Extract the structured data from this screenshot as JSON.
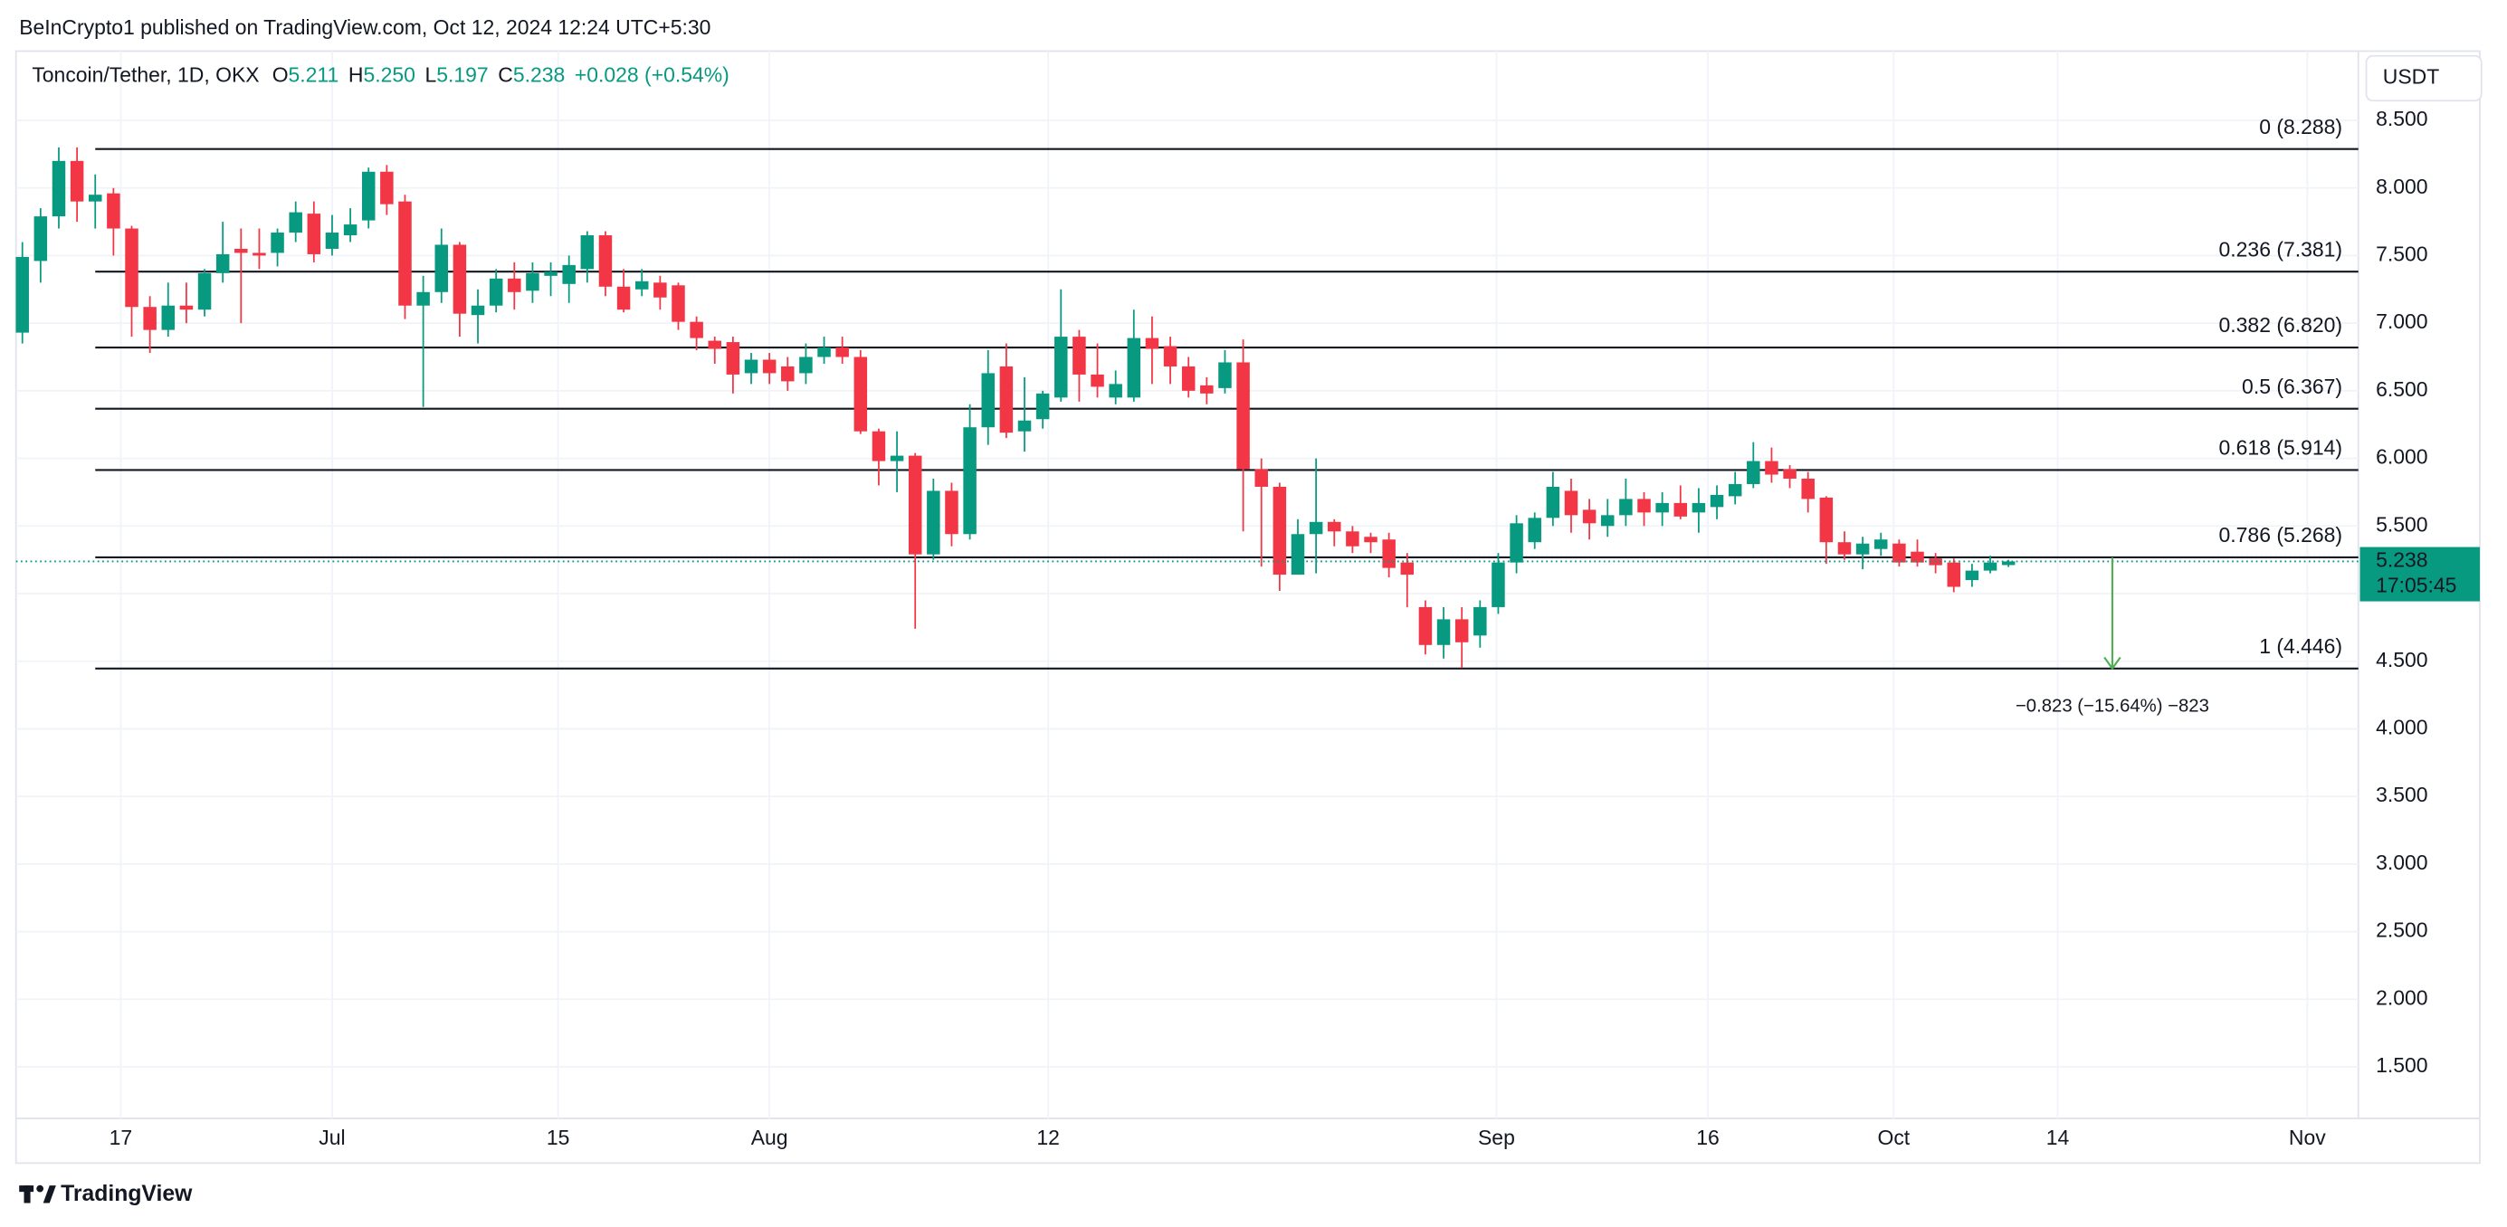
{
  "header": {
    "published": "BeInCrypto1 published on TradingView.com, Oct 12, 2024 12:24 UTC+5:30"
  },
  "legend": {
    "symbol": "Toncoin/Tether, 1D, OKX",
    "items": [
      {
        "key": "O",
        "value": "5.211"
      },
      {
        "key": "H",
        "value": "5.250"
      },
      {
        "key": "L",
        "value": "5.197"
      },
      {
        "key": "C",
        "value": "5.238"
      }
    ],
    "change": "+0.028 (+0.54%)"
  },
  "currency": "USDT",
  "footer": {
    "brand": "TradingView"
  },
  "chart_data": {
    "type": "candlestick",
    "up_color": "#089981",
    "down_color": "#f23645",
    "open": [
      6.93,
      7.46,
      7.79,
      8.2,
      7.9,
      7.96,
      7.7,
      7.12,
      6.95,
      7.13,
      7.1,
      7.37,
      7.55,
      7.52,
      7.52,
      7.67,
      7.81,
      7.55,
      7.65,
      7.76,
      8.12,
      7.9,
      7.13,
      7.23,
      7.58,
      7.06,
      7.13,
      7.33,
      7.24,
      7.35,
      7.29,
      7.4,
      7.65,
      7.27,
      7.25,
      7.3,
      7.28,
      7.01,
      6.87,
      6.86,
      6.63,
      6.73,
      6.68,
      6.63,
      6.75,
      6.82,
      6.75,
      6.2,
      5.98,
      6.02,
      5.29,
      5.76,
      5.44,
      6.23,
      6.68,
      6.2,
      6.29,
      6.45,
      6.9,
      6.62,
      6.45,
      6.45,
      6.89,
      6.83,
      6.68,
      6.54,
      6.52,
      6.71,
      5.92,
      5.79,
      5.14,
      5.44,
      5.53,
      5.46,
      5.42,
      5.4,
      5.23,
      4.9,
      4.62,
      4.81,
      4.69,
      4.9,
      5.23,
      5.38,
      5.56,
      5.76,
      5.62,
      5.5,
      5.58,
      5.7,
      5.6,
      5.67,
      5.6,
      5.64,
      5.72,
      5.81,
      5.98,
      5.92,
      5.85,
      5.71,
      5.38,
      5.29,
      5.33,
      5.37,
      5.31,
      5.26,
      5.23,
      5.1,
      5.17,
      5.211
    ],
    "high": [
      7.6,
      7.85,
      8.3,
      8.3,
      8.1,
      8.0,
      7.72,
      7.2,
      7.3,
      7.3,
      7.4,
      7.75,
      7.7,
      7.7,
      7.7,
      7.9,
      7.9,
      7.8,
      7.85,
      8.15,
      8.17,
      7.95,
      7.35,
      7.7,
      7.6,
      7.25,
      7.4,
      7.45,
      7.45,
      7.45,
      7.5,
      7.68,
      7.68,
      7.4,
      7.4,
      7.35,
      7.3,
      7.05,
      6.9,
      6.9,
      6.78,
      6.78,
      6.75,
      6.85,
      6.9,
      6.9,
      6.8,
      6.22,
      6.2,
      6.04,
      5.85,
      5.82,
      6.4,
      6.8,
      6.85,
      6.6,
      6.5,
      7.25,
      6.95,
      6.85,
      6.65,
      7.1,
      7.05,
      6.9,
      6.75,
      6.6,
      6.8,
      6.88,
      6.0,
      5.82,
      5.55,
      6.0,
      5.55,
      5.5,
      5.45,
      5.45,
      5.3,
      4.95,
      4.9,
      4.9,
      4.95,
      5.3,
      5.58,
      5.6,
      5.9,
      5.85,
      5.7,
      5.7,
      5.85,
      5.75,
      5.75,
      5.8,
      5.78,
      5.8,
      5.9,
      6.12,
      6.08,
      5.95,
      5.9,
      5.72,
      5.46,
      5.42,
      5.45,
      5.4,
      5.4,
      5.3,
      5.26,
      5.22,
      5.28,
      5.25
    ],
    "low": [
      6.85,
      7.3,
      7.7,
      7.75,
      7.7,
      7.5,
      6.9,
      6.78,
      6.9,
      7.0,
      7.05,
      7.3,
      7.0,
      7.4,
      7.42,
      7.6,
      7.45,
      7.5,
      7.6,
      7.7,
      7.8,
      7.03,
      6.38,
      7.15,
      6.9,
      6.85,
      7.08,
      7.1,
      7.15,
      7.2,
      7.15,
      7.3,
      7.2,
      7.08,
      7.2,
      7.1,
      6.95,
      6.8,
      6.7,
      6.48,
      6.55,
      6.55,
      6.5,
      6.55,
      6.7,
      6.7,
      6.18,
      5.8,
      5.75,
      4.74,
      5.25,
      5.35,
      5.4,
      6.1,
      6.15,
      6.05,
      6.22,
      6.42,
      6.42,
      6.45,
      6.4,
      6.42,
      6.55,
      6.55,
      6.45,
      6.4,
      6.48,
      5.46,
      5.2,
      5.02,
      5.14,
      5.15,
      5.35,
      5.3,
      5.3,
      5.12,
      4.9,
      4.55,
      4.52,
      4.45,
      4.6,
      4.85,
      5.15,
      5.33,
      5.5,
      5.45,
      5.4,
      5.42,
      5.5,
      5.5,
      5.5,
      5.55,
      5.45,
      5.55,
      5.66,
      5.78,
      5.82,
      5.78,
      5.6,
      5.22,
      5.25,
      5.18,
      5.28,
      5.2,
      5.2,
      5.15,
      5.01,
      5.05,
      5.15,
      5.197
    ],
    "close": [
      7.49,
      7.79,
      8.2,
      7.9,
      7.95,
      7.7,
      7.12,
      6.95,
      7.13,
      7.1,
      7.37,
      7.51,
      7.52,
      7.5,
      7.67,
      7.82,
      7.51,
      7.67,
      7.73,
      8.12,
      7.88,
      7.13,
      7.23,
      7.58,
      7.07,
      7.13,
      7.33,
      7.23,
      7.37,
      7.38,
      7.43,
      7.65,
      7.27,
      7.1,
      7.31,
      7.19,
      7.01,
      6.89,
      6.81,
      6.62,
      6.73,
      6.63,
      6.57,
      6.75,
      6.82,
      6.75,
      6.2,
      5.98,
      6.02,
      5.29,
      5.76,
      5.44,
      6.23,
      6.63,
      6.19,
      6.28,
      6.48,
      6.9,
      6.62,
      6.53,
      6.55,
      6.89,
      6.81,
      6.68,
      6.5,
      6.48,
      6.71,
      5.92,
      5.79,
      5.14,
      5.44,
      5.53,
      5.46,
      5.35,
      5.38,
      5.19,
      5.14,
      4.62,
      4.81,
      4.64,
      4.9,
      5.23,
      5.52,
      5.56,
      5.79,
      5.58,
      5.52,
      5.58,
      5.7,
      5.6,
      5.67,
      5.57,
      5.67,
      5.73,
      5.81,
      5.98,
      5.88,
      5.85,
      5.7,
      5.38,
      5.29,
      5.37,
      5.4,
      5.23,
      5.23,
      5.21,
      5.05,
      5.17,
      5.23,
      5.238
    ],
    "xlim": [
      -0.35,
      128.2
    ],
    "xticks": [
      {
        "value": 5.4,
        "label": "17"
      },
      {
        "value": 17,
        "label": "Jul"
      },
      {
        "value": 29.4,
        "label": "15"
      },
      {
        "value": 41,
        "label": "Aug"
      },
      {
        "value": 56.3,
        "label": "12"
      },
      {
        "value": 80.9,
        "label": "Sep"
      },
      {
        "value": 92.5,
        "label": "16"
      },
      {
        "value": 102.7,
        "label": "Oct"
      },
      {
        "value": 111.7,
        "label": "14"
      },
      {
        "value": 125.4,
        "label": "Nov"
      }
    ],
    "ylim": [
      1.119,
      9.012
    ],
    "yticks": [
      {
        "value": 1.5,
        "label": "1.500"
      },
      {
        "value": 2,
        "label": "2.000"
      },
      {
        "value": 2.5,
        "label": "2.500"
      },
      {
        "value": 3,
        "label": "3.000"
      },
      {
        "value": 3.5,
        "label": "3.500"
      },
      {
        "value": 4,
        "label": "4.000"
      },
      {
        "value": 4.5,
        "label": "4.500"
      },
      {
        "value": 5,
        "label": "5.000"
      },
      {
        "value": 5.5,
        "label": "5.500"
      },
      {
        "value": 6,
        "label": "6.000"
      },
      {
        "value": 6.5,
        "label": "6.500"
      },
      {
        "value": 7,
        "label": "7.000"
      },
      {
        "value": 7.5,
        "label": "7.500"
      },
      {
        "value": 8,
        "label": "8.000"
      },
      {
        "value": 8.5,
        "label": "8.500"
      }
    ],
    "grid": true,
    "fib_levels": [
      {
        "value": 8.288,
        "label": "0 (8.288)"
      },
      {
        "value": 7.381,
        "label": "0.236 (7.381)"
      },
      {
        "value": 6.82,
        "label": "0.382 (6.820)"
      },
      {
        "value": 6.367,
        "label": "0.5 (6.367)"
      },
      {
        "value": 5.914,
        "label": "0.618 (5.914)"
      },
      {
        "value": 5.268,
        "label": "0.786 (5.268)"
      },
      {
        "value": 4.446,
        "label": "1 (4.446)"
      }
    ],
    "last_price": {
      "value": 5.238,
      "countdown": "17:05:45",
      "color": "#089981"
    },
    "measure": {
      "x": 114.7,
      "from": 5.268,
      "to": 4.446,
      "label": "−0.823 (−15.64%) −823",
      "color": "#4caf50"
    }
  }
}
